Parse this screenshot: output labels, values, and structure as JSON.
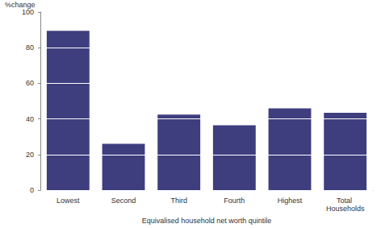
{
  "chart_data": {
    "type": "bar",
    "y_label": "%change",
    "x_label": "Equivalised household net worth quintile",
    "categories": [
      "Lowest",
      "Second",
      "Third",
      "Fourth",
      "Highest",
      "Total Households"
    ],
    "values": [
      89.5,
      26,
      42.5,
      36.5,
      46,
      43.5
    ],
    "color": "#3e3d7e",
    "ylim": [
      0,
      100
    ],
    "yticks": [
      0,
      20,
      40,
      60,
      80,
      100
    ],
    "grid": true
  }
}
